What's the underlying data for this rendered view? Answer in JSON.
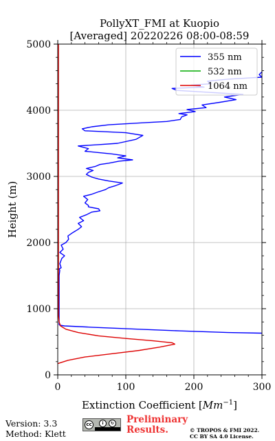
{
  "chart_data": {
    "type": "line",
    "title": "PollyXT_FMI at Kuopio",
    "subtitle": "[Averaged] 20220226 08:00-08:59",
    "xlabel_text": "Extinction Coefficient [",
    "xlabel_unit": "Mm",
    "xlabel_exp": "−1",
    "xlabel_close": "]",
    "ylabel": "Height (m)",
    "xlim": [
      0,
      300
    ],
    "ylim": [
      0,
      5000
    ],
    "xticks": [
      0,
      100,
      200,
      300
    ],
    "yticks": [
      0,
      1000,
      2000,
      3000,
      4000,
      5000
    ],
    "grid": true,
    "legend_position": "top-right",
    "series": [
      {
        "name": "355 nm",
        "color": "#0000ff",
        "points": [
          [
            300,
            630
          ],
          [
            250,
            640
          ],
          [
            180,
            665
          ],
          [
            120,
            690
          ],
          [
            50,
            720
          ],
          [
            10,
            740
          ],
          [
            3,
            750
          ],
          [
            2,
            760
          ],
          [
            2,
            900
          ],
          [
            2,
            1200
          ],
          [
            2,
            1500
          ],
          [
            3,
            1580
          ],
          [
            2,
            1600
          ],
          [
            5,
            1620
          ],
          [
            3,
            1680
          ],
          [
            6,
            1760
          ],
          [
            10,
            1800
          ],
          [
            3,
            1850
          ],
          [
            8,
            1900
          ],
          [
            5,
            1960
          ],
          [
            12,
            2000
          ],
          [
            16,
            2050
          ],
          [
            15,
            2100
          ],
          [
            22,
            2150
          ],
          [
            30,
            2200
          ],
          [
            35,
            2240
          ],
          [
            30,
            2290
          ],
          [
            38,
            2330
          ],
          [
            32,
            2380
          ],
          [
            42,
            2420
          ],
          [
            50,
            2460
          ],
          [
            62,
            2480
          ],
          [
            60,
            2510
          ],
          [
            45,
            2540
          ],
          [
            45,
            2560
          ],
          [
            40,
            2600
          ],
          [
            44,
            2650
          ],
          [
            38,
            2700
          ],
          [
            50,
            2730
          ],
          [
            58,
            2760
          ],
          [
            70,
            2800
          ],
          [
            75,
            2830
          ],
          [
            85,
            2860
          ],
          [
            95,
            2900
          ],
          [
            75,
            2930
          ],
          [
            60,
            2960
          ],
          [
            50,
            2990
          ],
          [
            42,
            3030
          ],
          [
            45,
            3060
          ],
          [
            52,
            3090
          ],
          [
            42,
            3120
          ],
          [
            55,
            3150
          ],
          [
            62,
            3180
          ],
          [
            75,
            3200
          ],
          [
            90,
            3230
          ],
          [
            110,
            3250
          ],
          [
            88,
            3280
          ],
          [
            100,
            3310
          ],
          [
            80,
            3340
          ],
          [
            60,
            3360
          ],
          [
            40,
            3380
          ],
          [
            45,
            3420
          ],
          [
            30,
            3460
          ],
          [
            60,
            3480
          ],
          [
            88,
            3500
          ],
          [
            115,
            3560
          ],
          [
            125,
            3620
          ],
          [
            100,
            3660
          ],
          [
            40,
            3690
          ],
          [
            36,
            3720
          ],
          [
            50,
            3750
          ],
          [
            75,
            3780
          ],
          [
            125,
            3810
          ],
          [
            160,
            3830
          ],
          [
            180,
            3860
          ],
          [
            182,
            3900
          ],
          [
            190,
            3930
          ],
          [
            178,
            3950
          ],
          [
            202,
            3980
          ],
          [
            190,
            4010
          ],
          [
            218,
            4040
          ],
          [
            212,
            4080
          ],
          [
            238,
            4120
          ],
          [
            262,
            4160
          ],
          [
            245,
            4200
          ],
          [
            272,
            4240
          ],
          [
            175,
            4300
          ],
          [
            168,
            4330
          ],
          [
            215,
            4350
          ],
          [
            196,
            4380
          ],
          [
            225,
            4400
          ],
          [
            220,
            4440
          ],
          [
            250,
            4470
          ],
          [
            300,
            4500
          ],
          [
            296,
            4540
          ],
          [
            300,
            4580
          ]
        ]
      },
      {
        "name": "532 nm",
        "color": "#00aa00",
        "points": []
      },
      {
        "name": "1064 nm",
        "color": "#dd0000",
        "points": [
          [
            0,
            170
          ],
          [
            3,
            180
          ],
          [
            15,
            220
          ],
          [
            40,
            270
          ],
          [
            80,
            320
          ],
          [
            120,
            370
          ],
          [
            150,
            420
          ],
          [
            172,
            465
          ],
          [
            168,
            485
          ],
          [
            140,
            515
          ],
          [
            100,
            550
          ],
          [
            60,
            590
          ],
          [
            30,
            640
          ],
          [
            12,
            690
          ],
          [
            4,
            740
          ],
          [
            2,
            800
          ],
          [
            1,
            900
          ],
          [
            1,
            1500
          ],
          [
            1,
            2000
          ],
          [
            1,
            2500
          ],
          [
            1,
            3000
          ],
          [
            1,
            3500
          ],
          [
            1,
            4000
          ],
          [
            1,
            4500
          ],
          [
            1,
            5000
          ]
        ]
      }
    ]
  },
  "footer": {
    "version": "Version: 3.3",
    "method": "Method: Klett",
    "preliminary_line1": "Preliminary",
    "preliminary_line2": "Results.",
    "copyright_line1": "© TROPOS & FMI 2022.",
    "copyright_line2": "CC BY SA 4.0 License."
  }
}
